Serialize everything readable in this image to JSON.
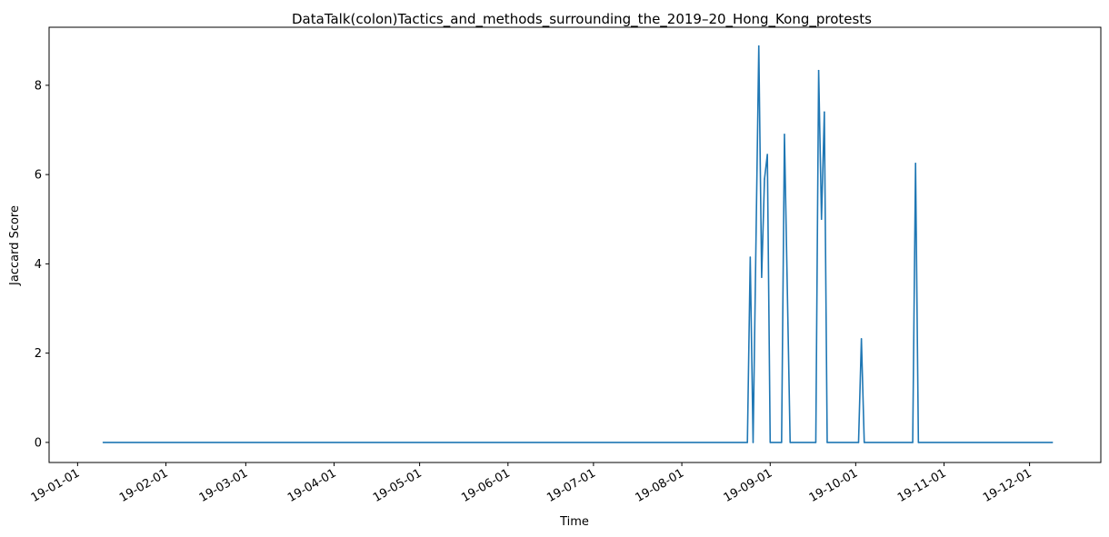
{
  "chart_data": {
    "type": "line",
    "title": "DataTalk(colon)Tactics_and_methods_surrounding_the_2019–20_Hong_Kong_protests",
    "xlabel": "Time",
    "ylabel": "Jaccard Score",
    "xlim": [
      "2018-12-22",
      "2019-12-26"
    ],
    "ylim": [
      -0.45,
      9.3
    ],
    "grid": false,
    "line_color": "#1f77b4",
    "x_ticks": [
      {
        "date": "2019-01-01",
        "label": "19-01-01"
      },
      {
        "date": "2019-02-01",
        "label": "19-02-01"
      },
      {
        "date": "2019-03-01",
        "label": "19-03-01"
      },
      {
        "date": "2019-04-01",
        "label": "19-04-01"
      },
      {
        "date": "2019-05-01",
        "label": "19-05-01"
      },
      {
        "date": "2019-06-01",
        "label": "19-06-01"
      },
      {
        "date": "2019-07-01",
        "label": "19-07-01"
      },
      {
        "date": "2019-08-01",
        "label": "19-08-01"
      },
      {
        "date": "2019-09-01",
        "label": "19-09-01"
      },
      {
        "date": "2019-10-01",
        "label": "19-10-01"
      },
      {
        "date": "2019-11-01",
        "label": "19-11-01"
      },
      {
        "date": "2019-12-01",
        "label": "19-12-01"
      }
    ],
    "y_ticks": [
      {
        "value": 0,
        "label": "0"
      },
      {
        "value": 2,
        "label": "2"
      },
      {
        "value": 4,
        "label": "4"
      },
      {
        "value": 6,
        "label": "6"
      },
      {
        "value": 8,
        "label": "8"
      }
    ],
    "series": [
      {
        "points": [
          {
            "x": "2019-01-10",
            "y": 0
          },
          {
            "x": "2019-08-24",
            "y": 0
          },
          {
            "x": "2019-08-25",
            "y": 4.15
          },
          {
            "x": "2019-08-26",
            "y": 0
          },
          {
            "x": "2019-08-28",
            "y": 8.88
          },
          {
            "x": "2019-08-29",
            "y": 3.7
          },
          {
            "x": "2019-08-30",
            "y": 5.9
          },
          {
            "x": "2019-08-31",
            "y": 6.45
          },
          {
            "x": "2019-09-01",
            "y": 0
          },
          {
            "x": "2019-09-05",
            "y": 0
          },
          {
            "x": "2019-09-06",
            "y": 6.9
          },
          {
            "x": "2019-09-08",
            "y": 0
          },
          {
            "x": "2019-09-17",
            "y": 0
          },
          {
            "x": "2019-09-18",
            "y": 8.33
          },
          {
            "x": "2019-09-19",
            "y": 5.0
          },
          {
            "x": "2019-09-20",
            "y": 7.4
          },
          {
            "x": "2019-09-21",
            "y": 0
          },
          {
            "x": "2019-10-02",
            "y": 0
          },
          {
            "x": "2019-10-03",
            "y": 2.32
          },
          {
            "x": "2019-10-04",
            "y": 0
          },
          {
            "x": "2019-10-21",
            "y": 0
          },
          {
            "x": "2019-10-22",
            "y": 6.25
          },
          {
            "x": "2019-10-23",
            "y": 0
          },
          {
            "x": "2019-12-09",
            "y": 0
          }
        ]
      }
    ]
  }
}
